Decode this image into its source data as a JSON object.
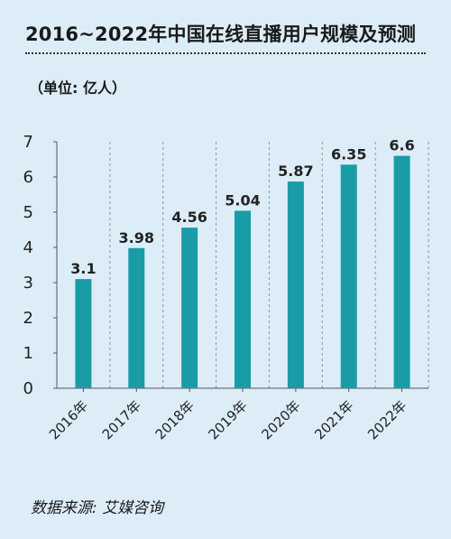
{
  "chart_data": {
    "type": "bar",
    "title": "2016~2022年中国在线直播用户规模及预测",
    "unit_label": "（单位: 亿人）",
    "categories": [
      "2016年",
      "2017年",
      "2018年",
      "2019年",
      "2020年",
      "2021年",
      "2022年"
    ],
    "values": [
      3.1,
      3.98,
      4.56,
      5.04,
      5.87,
      6.35,
      6.6
    ],
    "data_labels": [
      "3.1",
      "3.98",
      "4.56",
      "5.04",
      "5.87",
      "6.35",
      "6.6"
    ],
    "y_ticks": [
      "0",
      "1",
      "2",
      "3",
      "4",
      "5",
      "6",
      "7"
    ],
    "ylim": [
      0,
      7
    ],
    "grid": "vertical-dashed",
    "bar_color": "#1a9ca6",
    "xlabel": "",
    "ylabel": ""
  },
  "source": "数据来源: 艾媒咨询"
}
